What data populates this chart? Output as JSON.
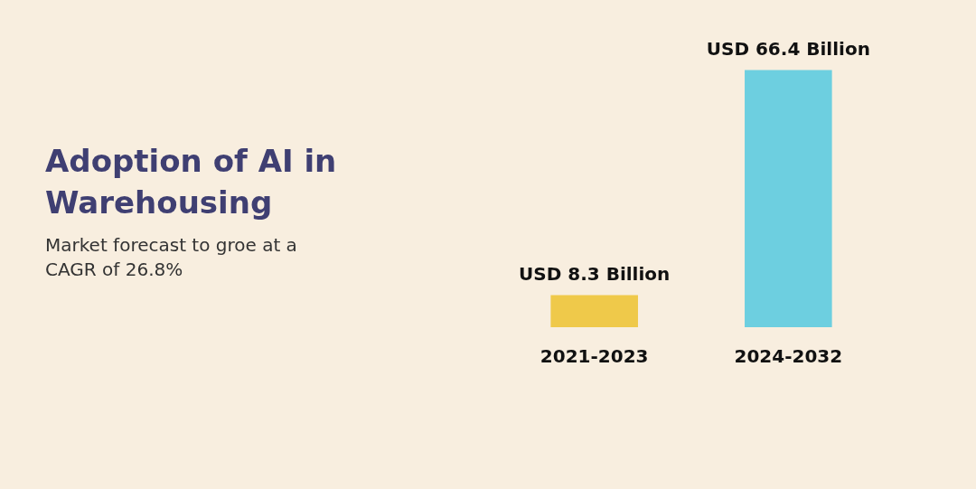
{
  "chart_data": {
    "type": "bar",
    "title": "Adoption of AI in Warehousing",
    "subtitle": "Market forecast to groe at a CAGR of 26.8%",
    "categories": [
      "2021-2023",
      "2024-2032"
    ],
    "values": [
      8.3,
      66.4
    ],
    "colors": [
      "#efc94a",
      "#6dcfe0"
    ],
    "value_labels": [
      "USD 8.3 Billion",
      "USD 66.4 Billion"
    ]
  }
}
